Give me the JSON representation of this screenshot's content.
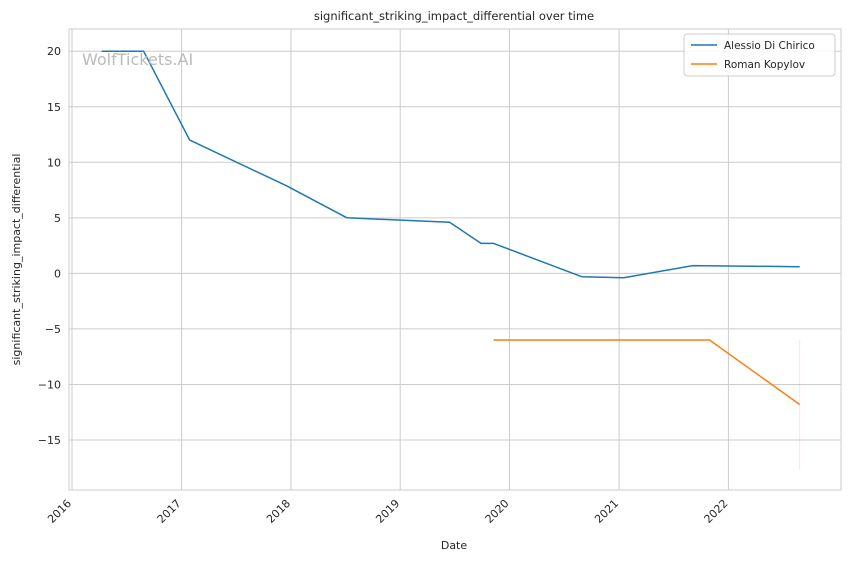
{
  "chart_data": {
    "type": "line",
    "title": "significant_striking_impact_differential over time",
    "xlabel": "Date",
    "ylabel": "significant_striking_impact_differential",
    "watermark": "WolfTickets.AI",
    "xlim": [
      "2015-12-22",
      "2023-01-12"
    ],
    "ylim": [
      -19.5,
      22
    ],
    "x_ticks": [
      "2016",
      "2017",
      "2018",
      "2019",
      "2020",
      "2021",
      "2022"
    ],
    "y_ticks": [
      20,
      15,
      10,
      5,
      0,
      -5,
      -10,
      -15
    ],
    "y_tick_labels": [
      "20",
      "15",
      "10",
      "5",
      "0",
      "−5",
      "−10",
      "−15"
    ],
    "grid": true,
    "legend_position": "top-right",
    "series": [
      {
        "name": "Alessio Di Chirico",
        "color": "#1f77b4",
        "x": [
          "2016-04-09",
          "2016-08-27",
          "2017-01-28",
          "2017-12-16",
          "2018-07-07",
          "2019-06-15",
          "2019-09-28",
          "2019-11-09",
          "2020-08-29",
          "2021-01-16",
          "2021-09-04",
          "2022-08-27"
        ],
        "y": [
          20.0,
          20.0,
          12.0,
          7.9,
          5.0,
          4.6,
          2.7,
          2.7,
          -0.3,
          -0.4,
          0.7,
          0.6
        ]
      },
      {
        "name": "Roman Kopylov",
        "color": "#ff7f0e",
        "x": [
          "2019-11-09",
          "2021-10-30",
          "2022-08-27"
        ],
        "y": [
          -6.0,
          -6.0,
          -11.8
        ]
      }
    ],
    "error_band": {
      "series": "Roman Kopylov",
      "x": "2022-08-27",
      "y_range": [
        -17.7,
        -6.0
      ]
    }
  }
}
